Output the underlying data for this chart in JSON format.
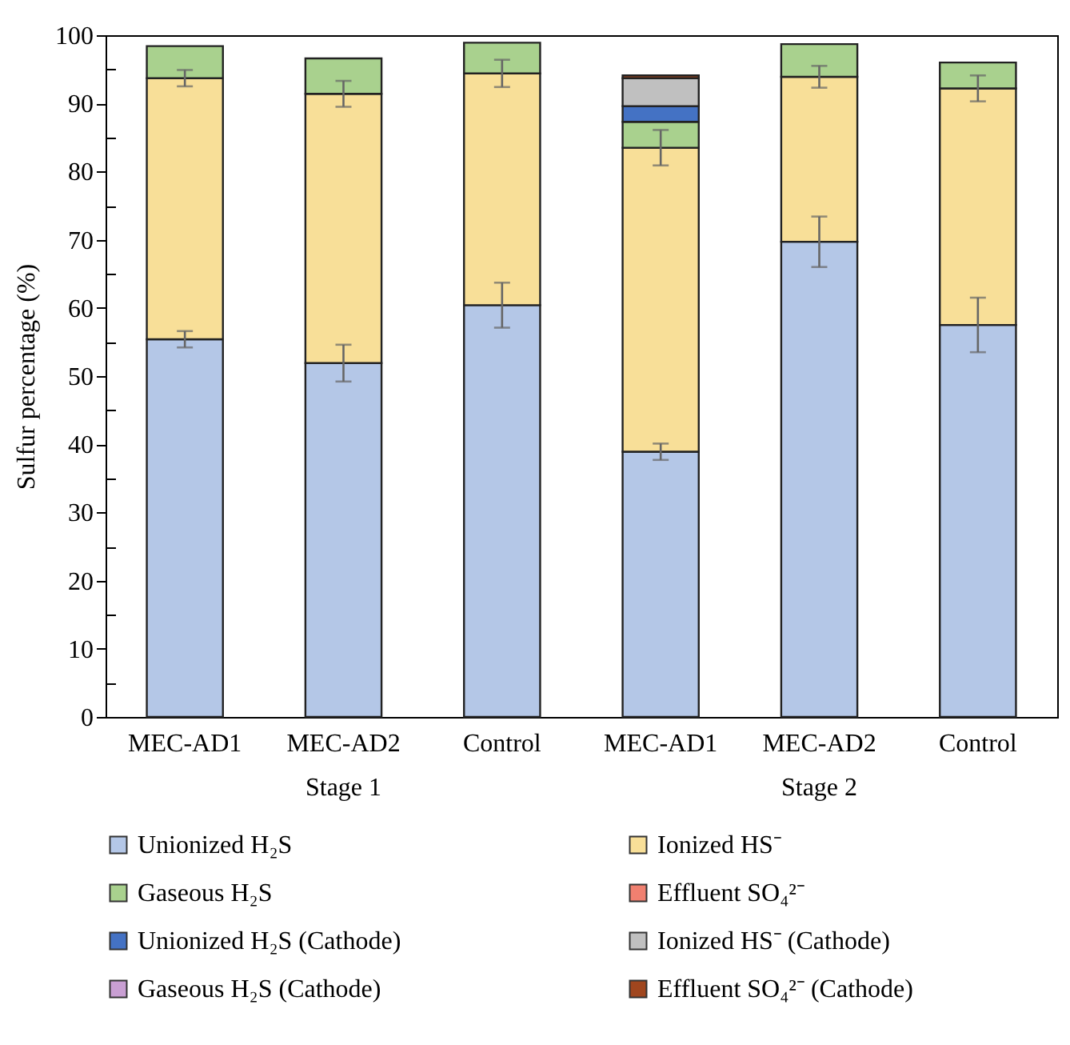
{
  "chart_data": {
    "type": "bar",
    "stacked": true,
    "ylabel": "Sulfur percentage (%)",
    "categories": [
      "MEC-AD1",
      "MEC-AD2",
      "Control",
      "MEC-AD1",
      "MEC-AD2",
      "Control"
    ],
    "annotations": [
      "Stage 1",
      "Stage 2"
    ],
    "series": [
      {
        "name": "Unionized H₂S",
        "color": "#b4c7e7",
        "values": [
          55.4,
          51.9,
          60.4,
          38.9,
          69.7,
          57.5
        ],
        "errors": [
          1.2,
          2.7,
          3.3,
          1.2,
          3.7,
          4.0
        ]
      },
      {
        "name": "Ionized HS⁻",
        "color": "#f8df98",
        "values": [
          38.3,
          39.5,
          34.0,
          44.6,
          24.2,
          34.7
        ],
        "errors": [
          1.2,
          1.9,
          2.0,
          2.6,
          1.6,
          1.9
        ]
      },
      {
        "name": "Gaseous H₂S",
        "color": "#a9d18e",
        "values": [
          4.7,
          5.2,
          4.5,
          3.8,
          4.8,
          3.8
        ]
      },
      {
        "name": "Effluent SO₄²⁻",
        "color": "#f08070",
        "values": [
          null,
          null,
          null,
          null,
          null,
          null
        ]
      },
      {
        "name": "Unionized H₂S (Cathode)",
        "color": "#4472c4",
        "values": [
          null,
          null,
          null,
          2.3,
          null,
          null
        ]
      },
      {
        "name": "Ionized HS⁻ (Cathode)",
        "color": "#c0c0c0",
        "values": [
          null,
          null,
          null,
          4.1,
          null,
          null
        ]
      },
      {
        "name": "Gaseous H₂S (Cathode)",
        "color": "#c99fd3",
        "values": [
          null,
          null,
          null,
          null,
          null,
          null
        ]
      },
      {
        "name": "Effluent SO₄²⁻ (Cathode)",
        "color": "#a0461e",
        "values": [
          null,
          null,
          null,
          0.4,
          null,
          null
        ]
      }
    ],
    "ylim": [
      0,
      100
    ],
    "yticks": [
      0,
      {
        "value": 5,
        "label": null
      },
      10,
      {
        "value": 15,
        "label": null
      },
      20,
      {
        "value": 25,
        "label": null
      },
      30,
      {
        "value": 35,
        "label": null
      },
      40,
      {
        "value": 45,
        "label": null
      },
      50,
      {
        "value": 55,
        "label": null
      },
      60,
      {
        "value": 65,
        "label": null
      },
      70,
      {
        "value": 75,
        "label": null
      },
      80,
      {
        "value": 85,
        "label": null
      },
      90,
      {
        "value": 95,
        "label": null
      },
      100
    ],
    "grid": false,
    "legend": "bottom"
  }
}
